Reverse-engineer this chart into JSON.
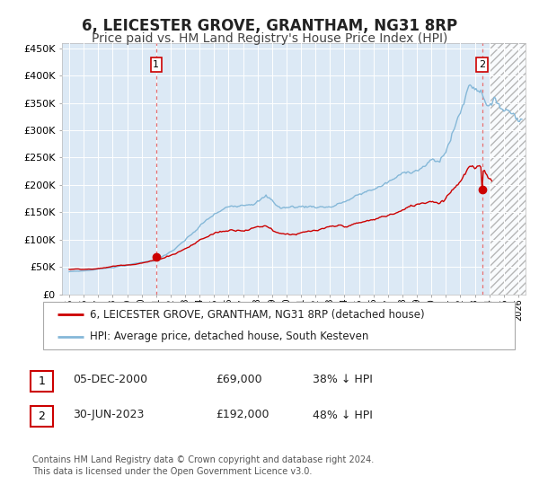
{
  "title": "6, LEICESTER GROVE, GRANTHAM, NG31 8RP",
  "subtitle": "Price paid vs. HM Land Registry's House Price Index (HPI)",
  "title_fontsize": 12,
  "subtitle_fontsize": 10,
  "background_color": "#ffffff",
  "plot_bg_color": "#dce9f5",
  "ylim": [
    0,
    460000
  ],
  "yticks": [
    0,
    50000,
    100000,
    150000,
    200000,
    250000,
    300000,
    350000,
    400000,
    450000
  ],
  "ytick_labels": [
    "£0",
    "£50K",
    "£100K",
    "£150K",
    "£200K",
    "£250K",
    "£300K",
    "£350K",
    "£400K",
    "£450K"
  ],
  "xlim_start": 1994.5,
  "xlim_end": 2026.5,
  "xtick_years": [
    1995,
    1996,
    1997,
    1998,
    1999,
    2000,
    2001,
    2002,
    2003,
    2004,
    2005,
    2006,
    2007,
    2008,
    2009,
    2010,
    2011,
    2012,
    2013,
    2014,
    2015,
    2016,
    2017,
    2018,
    2019,
    2020,
    2021,
    2022,
    2023,
    2024,
    2025,
    2026
  ],
  "hpi_line_color": "#85b8d8",
  "price_line_color": "#cc0000",
  "marker_color": "#cc0000",
  "vline1_x": 2001.0,
  "vline2_x": 2023.5,
  "sale1_year": 2001.0,
  "sale1_price": 69000,
  "sale2_year": 2023.5,
  "sale2_price": 192000,
  "legend_label1": "6, LEICESTER GROVE, GRANTHAM, NG31 8RP (detached house)",
  "legend_label2": "HPI: Average price, detached house, South Kesteven",
  "table_row1": [
    "1",
    "05-DEC-2000",
    "£69,000",
    "38% ↓ HPI"
  ],
  "table_row2": [
    "2",
    "30-JUN-2023",
    "£192,000",
    "48% ↓ HPI"
  ],
  "footnote": "Contains HM Land Registry data © Crown copyright and database right 2024.\nThis data is licensed under the Open Government Licence v3.0.",
  "hatch_start": 2024.0,
  "hatch_end": 2026.5
}
